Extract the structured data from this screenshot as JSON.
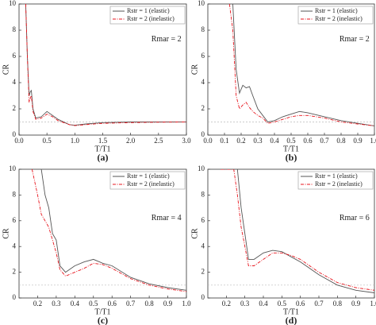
{
  "chart_data": [
    {
      "type": "line",
      "panel_label": "(a)",
      "xlabel": "T/T1",
      "ylabel": "CR",
      "annotation": "Rmar = 2",
      "xlim": [
        0,
        3.0
      ],
      "xticks": [
        {
          "value": 0,
          "label": "0.0"
        },
        0.5,
        {
          "value": 1,
          "label": "1.0"
        },
        1.5,
        {
          "value": 2,
          "label": "2.0"
        },
        2.5,
        {
          "value": 3,
          "label": "3.0"
        }
      ],
      "ylim": [
        0,
        10
      ],
      "yticks": [
        0,
        2,
        4,
        6,
        8,
        10
      ],
      "reference_line": 1,
      "x": [
        0.12,
        0.15,
        0.18,
        0.2,
        0.22,
        0.25,
        0.3,
        0.4,
        0.5,
        0.6,
        0.7,
        0.8,
        0.9,
        1.0,
        1.2,
        1.5,
        2.0,
        2.5,
        3.0
      ],
      "series": [
        {
          "name": "Rstr = 1 (elastic)",
          "color": "#555555",
          "style": "solid",
          "values": [
            10,
            6,
            3,
            3.3,
            3.4,
            2.0,
            1.3,
            1.4,
            1.8,
            1.5,
            1.2,
            1.0,
            0.8,
            0.75,
            0.85,
            0.95,
            1.0,
            1.0,
            1.0
          ]
        },
        {
          "name": "Rstr = 2 (inelastic)",
          "color": "#e8141c",
          "style": "dashdot",
          "values": [
            10,
            6,
            2.5,
            2.8,
            3.0,
            1.8,
            1.2,
            1.3,
            1.6,
            1.4,
            1.1,
            0.95,
            0.8,
            0.72,
            0.8,
            0.9,
            0.95,
            0.98,
            1.0
          ]
        }
      ]
    },
    {
      "type": "line",
      "panel_label": "(b)",
      "xlabel": "T/T1",
      "ylabel": "CR",
      "annotation": "Rmar = 2",
      "xlim": [
        0,
        1.0
      ],
      "xticks": [
        {
          "value": 0,
          "label": "0.0"
        },
        0.1,
        0.2,
        0.3,
        0.4,
        0.5,
        0.6,
        0.7,
        0.8,
        0.9,
        {
          "value": 1,
          "label": "1.0"
        }
      ],
      "ylim": [
        0,
        10
      ],
      "yticks": [
        0,
        2,
        4,
        6,
        8,
        10
      ],
      "reference_line": 1,
      "x": [
        0.13,
        0.15,
        0.17,
        0.19,
        0.21,
        0.23,
        0.25,
        0.27,
        0.3,
        0.33,
        0.36,
        0.4,
        0.45,
        0.5,
        0.55,
        0.6,
        0.7,
        0.8,
        0.9,
        1.0
      ],
      "series": [
        {
          "name": "Rstr = 1 (elastic)",
          "color": "#555555",
          "style": "solid",
          "values": [
            10,
            10,
            5,
            3.2,
            3.8,
            3.6,
            3.7,
            3.0,
            2.0,
            1.5,
            1.0,
            1.1,
            1.4,
            1.6,
            1.8,
            1.7,
            1.4,
            1.1,
            0.9,
            0.7
          ]
        },
        {
          "name": "Rstr = 2 (inelastic)",
          "color": "#e8141c",
          "style": "dashdot",
          "values": [
            10,
            8,
            3,
            2.0,
            2.3,
            2.5,
            2.1,
            1.8,
            1.5,
            1.3,
            0.9,
            1.0,
            1.2,
            1.4,
            1.5,
            1.5,
            1.3,
            1.0,
            0.85,
            0.7
          ]
        }
      ]
    },
    {
      "type": "line",
      "panel_label": "(c)",
      "xlabel": "T/T1",
      "ylabel": "CR",
      "annotation": "Rmar = 4",
      "xlim": [
        0.1,
        1.0
      ],
      "xticks": [
        0.2,
        0.3,
        0.4,
        0.5,
        0.6,
        0.7,
        0.8,
        0.9,
        {
          "value": 1,
          "label": "1.0"
        }
      ],
      "ylim": [
        0,
        10
      ],
      "yticks": [
        0,
        2,
        4,
        6,
        8,
        10
      ],
      "reference_line": 1,
      "x": [
        0.17,
        0.2,
        0.22,
        0.24,
        0.26,
        0.28,
        0.3,
        0.32,
        0.35,
        0.4,
        0.45,
        0.5,
        0.55,
        0.6,
        0.7,
        0.8,
        0.9,
        1.0
      ],
      "series": [
        {
          "name": "Rstr = 1 (elastic)",
          "color": "#555555",
          "style": "solid",
          "values": [
            10,
            10,
            10,
            8,
            7,
            5,
            4.5,
            2.5,
            2.0,
            2.5,
            2.8,
            3.0,
            2.7,
            2.5,
            1.6,
            1.1,
            0.8,
            0.6
          ]
        },
        {
          "name": "Rstr = 2 (inelastic)",
          "color": "#e8141c",
          "style": "dashdot",
          "values": [
            10,
            8,
            6.5,
            6,
            5.5,
            4.5,
            3.5,
            2.2,
            1.7,
            2.0,
            2.3,
            2.7,
            2.6,
            2.3,
            1.5,
            1.0,
            0.7,
            0.5
          ]
        }
      ]
    },
    {
      "type": "line",
      "panel_label": "(d)",
      "xlabel": "T/T1",
      "ylabel": "CR",
      "annotation": "Rmar = 6",
      "xlim": [
        0.1,
        1.0
      ],
      "xticks": [
        0.2,
        0.3,
        0.4,
        0.5,
        0.6,
        0.7,
        0.8,
        0.9,
        {
          "value": 1,
          "label": "1.0"
        }
      ],
      "ylim": [
        0,
        10
      ],
      "yticks": [
        0,
        2,
        4,
        6,
        8,
        10
      ],
      "reference_line": 1,
      "x": [
        0.17,
        0.2,
        0.22,
        0.24,
        0.26,
        0.28,
        0.3,
        0.32,
        0.35,
        0.4,
        0.45,
        0.5,
        0.55,
        0.6,
        0.7,
        0.8,
        0.9,
        1.0
      ],
      "series": [
        {
          "name": "Rstr = 1 (elastic)",
          "color": "#555555",
          "style": "solid",
          "values": [
            10,
            10,
            10,
            10,
            10,
            7,
            5,
            3,
            3,
            3.5,
            3.7,
            3.6,
            3.2,
            2.8,
            1.8,
            1.0,
            0.6,
            0.4
          ]
        },
        {
          "name": "Rstr = 2 (inelastic)",
          "color": "#e8141c",
          "style": "dashdot",
          "values": [
            10,
            10,
            10,
            10,
            8,
            5.5,
            4,
            2.5,
            2.5,
            3.0,
            3.5,
            3.5,
            3.3,
            3.0,
            2.0,
            1.2,
            0.8,
            0.6
          ]
        }
      ]
    }
  ]
}
